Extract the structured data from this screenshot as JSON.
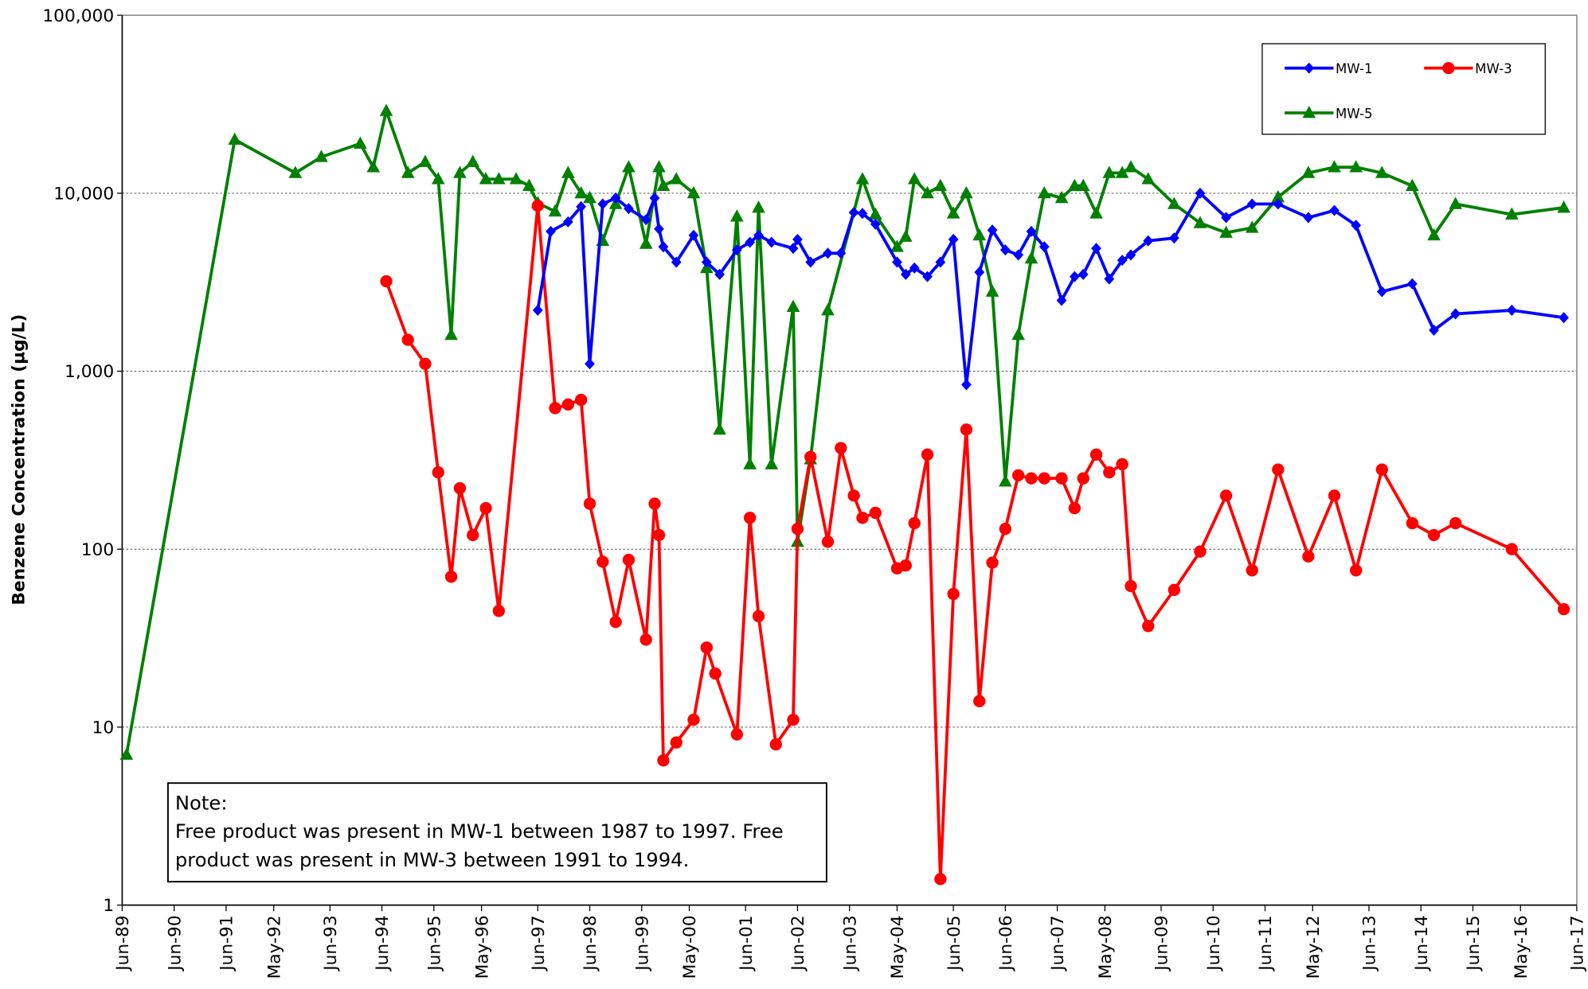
{
  "chart_data": {
    "type": "line",
    "y_label": "Benzene Concentration (µg/L)",
    "log_scale": true,
    "grid": true,
    "legend_position": "upper right",
    "xlim": [
      "1989-06",
      "2017-06"
    ],
    "xticks": [
      {
        "value": "1989-06",
        "label": "Jun-89"
      },
      {
        "value": "1990-06",
        "label": "Jun-90"
      },
      {
        "value": "1991-06",
        "label": "Jun-91"
      },
      {
        "value": "1992-05",
        "label": "May-92"
      },
      {
        "value": "1993-06",
        "label": "Jun-93"
      },
      {
        "value": "1994-06",
        "label": "Jun-94"
      },
      {
        "value": "1995-06",
        "label": "Jun-95"
      },
      {
        "value": "1996-05",
        "label": "May-96"
      },
      {
        "value": "1997-06",
        "label": "Jun-97"
      },
      {
        "value": "1998-06",
        "label": "Jun-98"
      },
      {
        "value": "1999-06",
        "label": "Jun-99"
      },
      {
        "value": "2000-05",
        "label": "May-00"
      },
      {
        "value": "2001-06",
        "label": "Jun-01"
      },
      {
        "value": "2002-06",
        "label": "Jun-02"
      },
      {
        "value": "2003-06",
        "label": "Jun-03"
      },
      {
        "value": "2004-05",
        "label": "May-04"
      },
      {
        "value": "2005-06",
        "label": "Jun-05"
      },
      {
        "value": "2006-06",
        "label": "Jun-06"
      },
      {
        "value": "2007-06",
        "label": "Jun-07"
      },
      {
        "value": "2008-05",
        "label": "May-08"
      },
      {
        "value": "2009-06",
        "label": "Jun-09"
      },
      {
        "value": "2010-06",
        "label": "Jun-10"
      },
      {
        "value": "2011-06",
        "label": "Jun-11"
      },
      {
        "value": "2012-05",
        "label": "May-12"
      },
      {
        "value": "2013-06",
        "label": "Jun-13"
      },
      {
        "value": "2014-06",
        "label": "Jun-14"
      },
      {
        "value": "2015-06",
        "label": "Jun-15"
      },
      {
        "value": "2016-05",
        "label": "May-16"
      },
      {
        "value": "2017-06",
        "label": "Jun-17"
      }
    ],
    "ylim": [
      1,
      100000
    ],
    "yticks": [
      1,
      10,
      100,
      {
        "value": 1000,
        "label": "1,000"
      },
      {
        "value": 10000,
        "label": "10,000"
      },
      {
        "value": 100000,
        "label": "100,000"
      }
    ],
    "series": [
      {
        "name": "MW-1",
        "color": "#0000ff",
        "marker": "diamond",
        "x": [
          "1997-06",
          "1997-09",
          "1998-01",
          "1998-04",
          "1998-06",
          "1998-09",
          "1998-12",
          "1999-03",
          "1999-07",
          "1999-09",
          "1999-10",
          "1999-11",
          "2000-02",
          "2000-06",
          "2000-09",
          "2000-12",
          "2001-04",
          "2001-07",
          "2001-09",
          "2001-12",
          "2002-05",
          "2002-06",
          "2002-09",
          "2003-01",
          "2003-04",
          "2003-07",
          "2003-09",
          "2003-12",
          "2004-05",
          "2004-07",
          "2004-09",
          "2004-12",
          "2005-03",
          "2005-06",
          "2005-09",
          "2005-12",
          "2006-03",
          "2006-06",
          "2006-09",
          "2006-12",
          "2007-03",
          "2007-07",
          "2007-10",
          "2007-12",
          "2008-03",
          "2008-06",
          "2008-09",
          "2008-11",
          "2009-03",
          "2009-09",
          "2010-03",
          "2010-09",
          "2011-03",
          "2011-09",
          "2012-04",
          "2012-10",
          "2013-03",
          "2013-09",
          "2014-04",
          "2014-09",
          "2015-02",
          "2016-03",
          "2017-03"
        ],
        "values": [
          2200,
          6100,
          6900,
          8400,
          1100,
          8700,
          9400,
          8200,
          7100,
          9400,
          6300,
          5000,
          4100,
          5800,
          4100,
          3500,
          4800,
          5300,
          5800,
          5300,
          4900,
          5500,
          4100,
          4600,
          4600,
          7800,
          7700,
          6700,
          4100,
          3500,
          3800,
          3400,
          4100,
          5500,
          840,
          3600,
          6200,
          4800,
          4500,
          6100,
          5000,
          2500,
          3400,
          3500,
          4900,
          3300,
          4200,
          4500,
          5400,
          5600,
          10000,
          7300,
          8700,
          8700,
          7300,
          8000,
          6600,
          2800,
          3100,
          1700,
          2100,
          2200,
          2000
        ]
      },
      {
        "name": "MW-3",
        "color": "#ff0000",
        "marker": "circle",
        "x": [
          "1994-07",
          "1994-12",
          "1995-04",
          "1995-07",
          "1995-10",
          "1995-12",
          "1996-03",
          "1996-06",
          "1996-09",
          "1997-06",
          "1997-10",
          "1998-01",
          "1998-04",
          "1998-06",
          "1998-09",
          "1998-12",
          "1999-03",
          "1999-07",
          "1999-09",
          "1999-10",
          "1999-11",
          "2000-02",
          "2000-06",
          "2000-09",
          "2000-11",
          "2001-04",
          "2001-07",
          "2001-09",
          "2002-01",
          "2002-05",
          "2002-06",
          "2002-09",
          "2003-01",
          "2003-04",
          "2003-07",
          "2003-09",
          "2003-12",
          "2004-05",
          "2004-07",
          "2004-09",
          "2004-12",
          "2005-03",
          "2005-06",
          "2005-09",
          "2005-12",
          "2006-03",
          "2006-06",
          "2006-09",
          "2006-12",
          "2007-03",
          "2007-07",
          "2007-10",
          "2007-12",
          "2008-03",
          "2008-06",
          "2008-09",
          "2008-11",
          "2009-03",
          "2009-09",
          "2010-03",
          "2010-09",
          "2011-03",
          "2011-09",
          "2012-04",
          "2012-10",
          "2013-03",
          "2013-09",
          "2014-04",
          "2014-09",
          "2015-02",
          "2016-03",
          "2017-03"
        ],
        "values": [
          3200,
          1500,
          1100,
          270,
          70,
          220,
          120,
          170,
          45,
          8500,
          620,
          650,
          690,
          180,
          85,
          39,
          87,
          31,
          180,
          120,
          6.5,
          8.2,
          11,
          28,
          20,
          9.1,
          150,
          42,
          8,
          11,
          130,
          330,
          110,
          370,
          200,
          150,
          160,
          78,
          81,
          140,
          340,
          1.4,
          56,
          470,
          14,
          84,
          130,
          260,
          250,
          250,
          250,
          170,
          250,
          340,
          270,
          300,
          62,
          37,
          59,
          97,
          200,
          76,
          280,
          91,
          200,
          76,
          280,
          140,
          120,
          140,
          100,
          46
        ]
      },
      {
        "name": "MW-5",
        "color": "#008000",
        "marker": "triangle",
        "x": [
          "1989-07",
          "1991-08",
          "1992-10",
          "1993-04",
          "1994-01",
          "1994-04",
          "1994-07",
          "1994-12",
          "1995-04",
          "1995-07",
          "1995-10",
          "1995-12",
          "1996-03",
          "1996-06",
          "1996-09",
          "1997-01",
          "1997-04",
          "1997-06",
          "1997-10",
          "1998-01",
          "1998-04",
          "1998-06",
          "1998-09",
          "1998-12",
          "1999-03",
          "1999-07",
          "1999-10",
          "1999-11",
          "2000-02",
          "2000-06",
          "2000-09",
          "2000-12",
          "2001-04",
          "2001-07",
          "2001-09",
          "2001-12",
          "2002-05",
          "2002-06",
          "2002-09",
          "2003-01",
          "2003-09",
          "2003-12",
          "2004-05",
          "2004-07",
          "2004-09",
          "2004-12",
          "2005-03",
          "2005-06",
          "2005-09",
          "2005-12",
          "2006-03",
          "2006-06",
          "2006-09",
          "2006-12",
          "2007-03",
          "2007-07",
          "2007-10",
          "2007-12",
          "2008-03",
          "2008-06",
          "2008-09",
          "2008-11",
          "2009-03",
          "2009-09",
          "2010-03",
          "2010-09",
          "2011-03",
          "2011-09",
          "2012-04",
          "2012-10",
          "2013-03",
          "2013-09",
          "2014-04",
          "2014-09",
          "2015-02",
          "2016-03",
          "2017-03"
        ],
        "values": [
          7,
          20000,
          13000,
          16000,
          19000,
          14000,
          29000,
          13000,
          15000,
          12000,
          1600,
          13000,
          15000,
          12000,
          12000,
          12000,
          11000,
          8800,
          7900,
          13000,
          10000,
          9400,
          5400,
          8700,
          14000,
          5200,
          14000,
          11000,
          12000,
          10000,
          3800,
          470,
          7400,
          300,
          8300,
          300,
          2300,
          110,
          320,
          2200,
          12000,
          7600,
          5000,
          5700,
          12000,
          10000,
          11000,
          7700,
          10000,
          5800,
          2800,
          240,
          1600,
          4300,
          10000,
          9400,
          11000,
          11000,
          7700,
          13000,
          13000,
          14000,
          12000,
          8700,
          6800,
          6000,
          6400,
          9500,
          13000,
          14000,
          14000,
          13000,
          11000,
          5800,
          8700,
          7600,
          8300
        ]
      }
    ],
    "note": {
      "title": "Note:",
      "lines": [
        "Free product was present in MW-1 between 1987 to 1997. Free",
        "product was present in MW-3 between 1991 to 1994."
      ]
    }
  }
}
